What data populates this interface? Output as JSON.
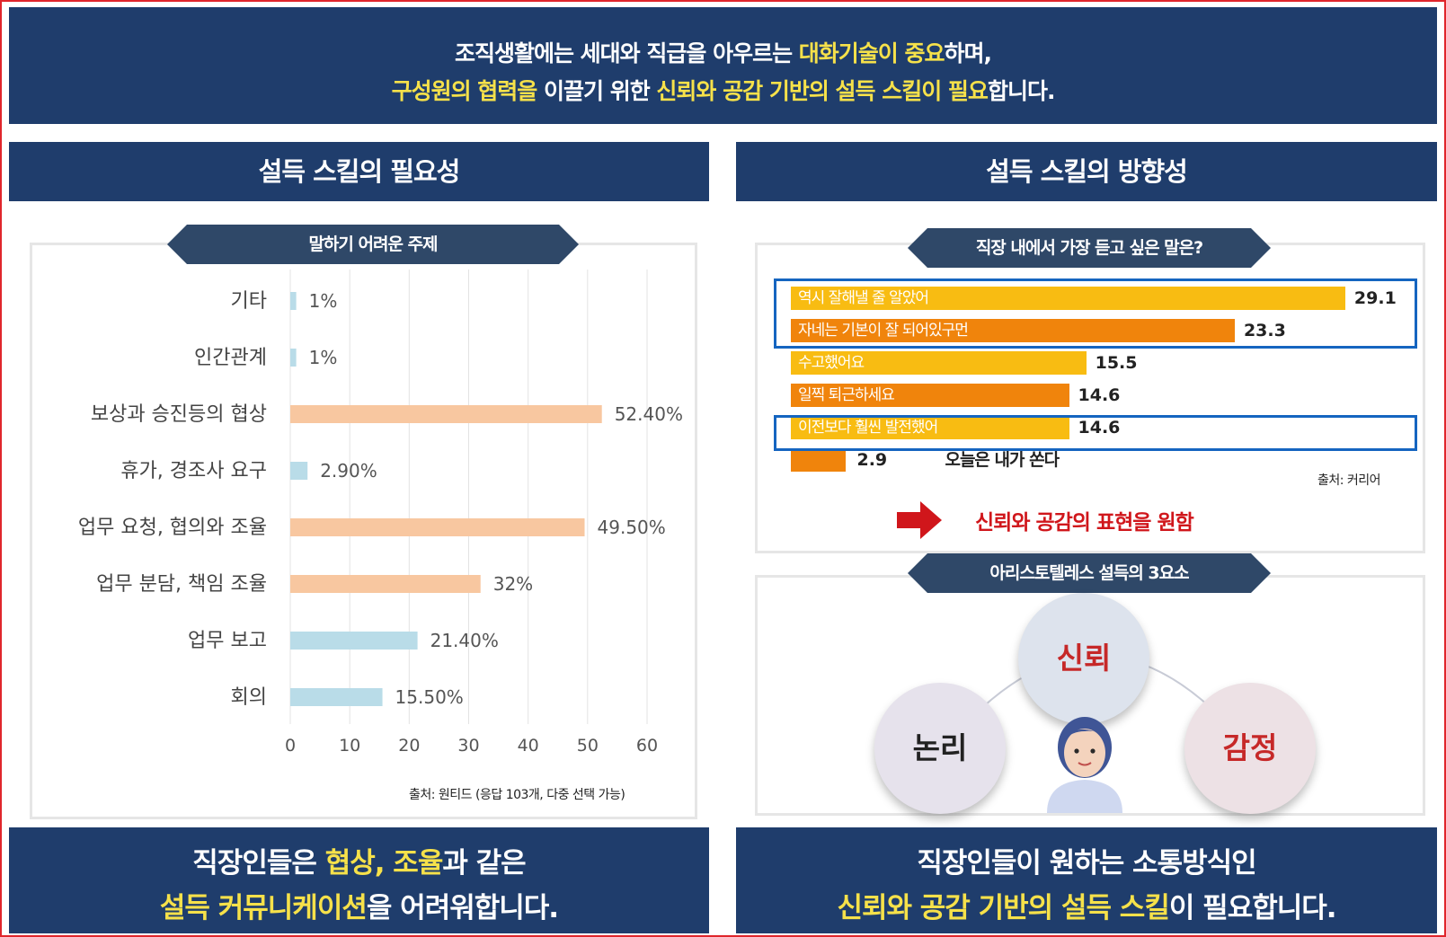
{
  "top_banner": {
    "line1": [
      {
        "text": "조직생활에는 세대와 직급을 아우르는 ",
        "highlight": false
      },
      {
        "text": "대화기술이 중요",
        "highlight": true
      },
      {
        "text": "하며,",
        "highlight": false
      }
    ],
    "line2": [
      {
        "text": "구성원의 협력을",
        "highlight": true
      },
      {
        "text": " 이끌기 위한 ",
        "highlight": false
      },
      {
        "text": "신뢰와 공감 기반의 설득 스킬이 필요",
        "highlight": true
      },
      {
        "text": "합니다.",
        "highlight": false
      }
    ]
  },
  "left_panel": {
    "header": "설득 스킬의 필요성",
    "ribbon": "말하기 어려운 주제",
    "source": "출처: 원티드 (응답 103개, 다중 선택 가능)",
    "footer": {
      "line1": [
        {
          "text": "직장인들은 ",
          "highlight": false
        },
        {
          "text": "협상, 조율",
          "highlight": true
        },
        {
          "text": "과 같은",
          "highlight": false
        }
      ],
      "line2": [
        {
          "text": "설득 커뮤니케이션",
          "highlight": true
        },
        {
          "text": "을 어려워합니다.",
          "highlight": false
        }
      ]
    }
  },
  "chart_data": [
    {
      "type": "bar",
      "orientation": "horizontal",
      "title": "말하기 어려운 주제",
      "categories": [
        "기타",
        "인간관계",
        "보상과 승진등의 협상",
        "휴가, 경조사 요구",
        "업무 요청, 협의와 조율",
        "업무 분담, 책임 조율",
        "업무 보고",
        "회의"
      ],
      "values": [
        1,
        1,
        52.4,
        2.9,
        49.5,
        32,
        21.4,
        15.5
      ],
      "value_labels": [
        "1%",
        "1%",
        "52.40%",
        "2.90%",
        "49.50%",
        "32%",
        "21.40%",
        "15.50%"
      ],
      "highlighted": [
        false,
        false,
        true,
        false,
        true,
        true,
        false,
        false
      ],
      "colors": {
        "normal": "#b9dce8",
        "highlight": "#f8c7a0"
      },
      "xlim": [
        0,
        60
      ],
      "xticks": [
        "0",
        "10",
        "20",
        "30",
        "40",
        "50",
        "60"
      ],
      "grid": true
    },
    {
      "type": "bar",
      "orientation": "horizontal",
      "title": "직장 내에서 가장 듣고 싶은 말은?",
      "categories": [
        "역시 잘해낼 줄 알았어",
        "자네는 기본이 잘 되어있구먼",
        "수고했어요",
        "일찍 퇴근하세요",
        "이전보다 훨씬 발전했어",
        "오늘은 내가 쏜다"
      ],
      "values": [
        29.1,
        23.3,
        15.5,
        14.6,
        14.6,
        2.9
      ],
      "value_labels": [
        "29.1",
        "23.3",
        "15.5",
        "14.6",
        "14.6",
        "2.9"
      ],
      "colors": [
        "#f8bc12",
        "#f0840c",
        "#f8bc12",
        "#f0840c",
        "#f8bc12",
        "#f0840c"
      ],
      "boxed": [
        true,
        true,
        false,
        false,
        true,
        false
      ]
    }
  ],
  "right_panel": {
    "header": "설득 스킬의 방향성",
    "ribbon": "직장 내에서 가장 듣고 싶은 말은?",
    "source": "출처: 커리어",
    "conclusion": "신뢰와 공감의 표현을 원함",
    "ribbon2": "아리스토텔레스 설득의 3요소",
    "circles": {
      "top": "신뢰",
      "left": "논리",
      "right": "감정"
    },
    "footer": {
      "line1": [
        {
          "text": "직장인들이 원하는 소통방식인",
          "highlight": false
        }
      ],
      "line2": [
        {
          "text": "신뢰와 공감 기반의 설득 스킬",
          "highlight": true
        },
        {
          "text": "이 필요합니다.",
          "highlight": false
        }
      ]
    }
  },
  "colors": {
    "navy": "#1f3d6c",
    "highlight_yellow": "#f6e14a",
    "accent_red": "#d0161b",
    "blue_box": "#1565c0"
  }
}
